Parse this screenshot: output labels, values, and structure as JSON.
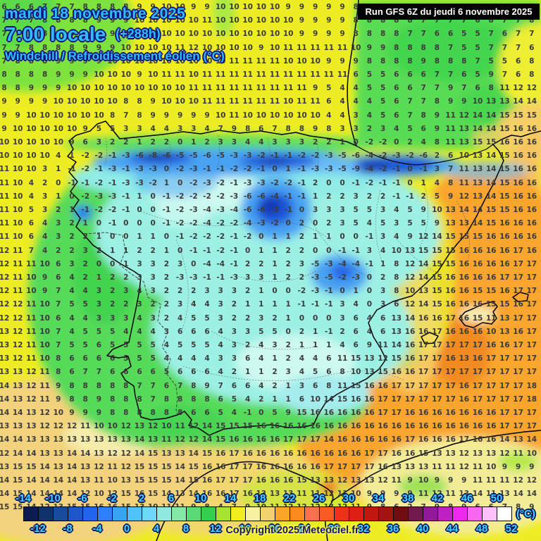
{
  "header": {
    "date_line": "mardi 18 novembre 2025",
    "time_line": "7:00 locale",
    "offset_label": "(+288h)",
    "param_line": "Windchill / Refroidissement éolien (°C)",
    "text_color": "#2fbdf8",
    "outline_color": "#12127e"
  },
  "run_box": {
    "label": "Run GFS 6Z du jeudi 6 novembre 2025",
    "bg_color": "#000000",
    "text_color": "#ffffff"
  },
  "copyright": {
    "label": "Copyright 2025 Meteociel.fr",
    "text_color": "#16166e",
    "glow_color": "#ffff55"
  },
  "scale": {
    "unit_label": "(°C)",
    "min": -14,
    "max": 52,
    "step": 2,
    "top_labels": [
      -14,
      -10,
      -6,
      -2,
      2,
      6,
      10,
      14,
      18,
      22,
      26,
      30,
      34,
      38,
      42,
      46,
      50
    ],
    "bottom_labels": [
      -12,
      -8,
      -4,
      0,
      4,
      8,
      12,
      16,
      20,
      24,
      28,
      32,
      36,
      40,
      44,
      48,
      52
    ],
    "label_color": "#3fd4ff",
    "colors": [
      "#0a1c50",
      "#12306e",
      "#194a9c",
      "#1e56c8",
      "#2465f0",
      "#2e80fc",
      "#3aa4f4",
      "#4fc2fa",
      "#6cd8fc",
      "#8feadd",
      "#86e8a6",
      "#58da75",
      "#33d04e",
      "#a8e42e",
      "#f2ee1e",
      "#f6f2a2",
      "#f2d26e",
      "#fba42c",
      "#fb8a1e",
      "#fa7150",
      "#f95b24",
      "#f0301c",
      "#de1f16",
      "#c0180f",
      "#a31310",
      "#6f0d10",
      "#701a4e",
      "#94189a",
      "#bf20c4",
      "#ee28ee",
      "#f768f3",
      "#fdc0fa",
      "#ffffff"
    ]
  },
  "grid": {
    "rows": [
      "6 6 6 7 7 7 8 8 8 8 9 9 10 10 9 9 10 10 10 10 10 9 9 9 9 9 8 8 8 9 8 8 8 7 7 7 8 8 8 8",
      "7 7 7 8 8 8 8 9 9 9 10 10 10 10 10 11 10 10 10 10 10 10 9 9 9 9 8 8 8 8 8 7 7 7 7 6 8 7 7 8",
      "7 7 8 8 8 8 8 9 9 9 10 10 10 10 10 10 10 10 10 10 10 10 9 9 9 9 8 8 8 8 7 7 6 6 5 5 7 6 7 7",
      "7 7 8 8 8 8 9 9 9 10 10 10 10 11 12 10 10 10 10 9 10 11 11 11 11 11 10 9 9 8 8 8 8 7 5 5 7 7 7 6",
      "7 8 8 8 9 9 9 9 10 10 10 10 10 10 10 10 10 11 11 11 11 10 10 10 9 9 9 8 8 8 8 9 8 8 8 7 5 5 6 8",
      "8 8 8 8 9 9 9 10 10 10 9 10 11 11 10 11 11 11 11 11 11 11 11 11 11 11 6 5 5 6 6 6 7 7 6 5 9 7 6 8",
      "8 8 9 9 9 10 10 10 10 10 10 10 10 10 11 11 11 11 11 11 11 11 11 9 5 4 4 5 5 6 6 7 7 9 7 6 8 11 12 12",
      "9 9 9 9 10 10 10 10 10 8 8 9 10 10 10 11 11 11 11 11 11 10 11 11 6 4 4 4 5 6 7 7 8 9 9 10 13 13 14 14",
      "9 9 10 10 10 10 10 10 8 7 8 9 9 9 9 9 10 11 10 10 10 10 10 10 4 4 3 4 5 6 7 8 9 11 12 14 14 15 15 15",
      "9 10 10 10 10 10 9 5 5 3 3 4 4 3 3 4 7 9 8 6 7 8 8 9 8 3 3 2 3 4 5 6 9 11 13 14 14 15 16 16",
      "10 10 10 10 10 9 6 3 2 2 1 2 2 0 1 2 3 3 4 4 3 3 3 2 2 1 0 -2 -2 0 2 4 8 11 13 15 15 16 16 16",
      "10 10 10 10 4 1 -2 -2 -1 -3 -6 -8 -6 -5 -5 -6 -5 -3 -3 -2 -1 -1 -2 -2 -3 -5 -6 -4 -2 -3 -2 -6 2 6 10 13 14 15 16 16",
      "11 10 10 3 1 -1 -2 -1 -3 -1 -3 -3 0 -2 -3 -1 -1 -2 -2 -1 0 1 -1 -3 -3 -5 -9 -4 -2 -1 0 -1 3 7 11 13 14 15 16 16",
      "11 10 4 2 0 -1 -1 -2 -1 -3 -3 -2 1 0 -2 -3 -2 -1 -3 -3 -2 -2 -1 2 0 0 -1 -2 -1 -1 0 1 4 8 11 13 14 15 16 16",
      "11 10 4 3 1 0 -2 -3 -3 -1 1 0 -1 -2 -2 -2 -2 -3 -6 -6 -4 -1 -1 1 2 2 3 2 2 -1 -1 2 5 9 12 13 14 15 16 16",
      "11 10 5 3 2 1 -1 -2 -2 -1 0 0 -1 -2 -3 -4 -3 -4 -6 -6 -3 -1 0 3 3 3 5 5 3 4 5 9 10 13 14 14 15 15 16 16",
      "11 10 6 4 3 2 1 0 -1 0 0 0 -1 -2 -2 -4 -2 -2 -4 -3 -2 0 2 0 2 3 5 4 5 3 5 5 9 13 13 14 15 16 16 16",
      "11 10 6 4 3 2 2 1 0 0 1 1 0 -1 -2 -2 -2 -1 -2 0 1 1 2 1 1 0 0 -1 3 4 9 12 14 15 15 15 16 16 16 16",
      "12 11 7 4 2 2 3 2 1 1 2 2 1 0 -1 -1 -2 -1 0 1 1 2 2 0 0 -1 -1 3 4 10 13 15 15 15 16 16 16 16 17 16",
      "12 11 11 10 6 3 2 0 0 1 3 3 2 3 0 -4 -4 -1 2 2 1 2 3 -5 -3 -4 -4 -1 1 8 12 14 15 15 16 16 16 16 17 17",
      "12 11 10 9 6 4 2 1 2 2 3 3 2 -3 -3 -1 -1 -3 3 3 1 2 2 -3 -5 -2 -3 0 2 8 12 14 15 16 16 16 16 17 17 17",
      "12 11 10 9 7 4 4 3 2 3 4 3 2 2 2 3 3 3 2 1 0 0 -2 -3 -1 0 1 0 3 8 10 13 15 16 16 15 15 16 17 17",
      "12 12 11 10 7 5 5 3 2 2 3 2 2 3 4 4 3 2 1 1 1 1 -1 -1 -1 3 4 0 3 6 12 14 15 16 16 16 15 15 16 17",
      "12 12 11 10 6 4 4 3 3 3 4 3 2 4 5 5 3 2 2 3 2 1 0 0 0 3 6 4 6 13 14 16 16 17 16 15 11 13 17 17",
      "13 12 11 10 7 4 5 5 5 4 4 4 3 6 6 6 4 3 3 5 5 0 2 1 -1 2 6 4 6 13 16 16 17 16 16 16 10 13 16 17",
      "13 12 11 10 7 5 5 6 5 5 5 5 4 5 5 5 4 3 2 4 3 2 1 1 1 4 6 9 11 14 16 17 17 17 17 17 16 16 17 17",
      "13 12 11 10 8 6 6 6 6 5 5 5 4 4 4 4 3 3 6 4 1 2 4 4 6 11 15 13 12 15 16 17 17 16 13 16 17 17 17 17",
      "13 13 12 11 8 6 7 7 6 6 6 6 5 6 6 6 4 2 1 1 2 3 4 5 6 8 10 13 15 16 16 17 17 17 17 17 17 17 17 17",
      "14 13 12 11 9 8 8 8 8 8 7 7 6 7 8 9 7 6 6 4 2 1 3 6 8 11 15 16 16 17 17 17 17 17 16 17 17 17 17 18",
      "14 13 12 11 9 8 8 9 8 8 8 7 8 8 8 8 6 5 4 2 1 1 6 10 14 15 16 16 17 17 17 17 17 17 16 17 17 17 17 18",
      "14 14 13 12 10 9 9 9 8 8 8 8 8 8 6 6 5 4 -1 0 5 9 15 16 16 16 16 16 17 17 16 16 16 16 16 16 16 17 17 17",
      "13 13 13 12 12 12 11 10 10 12 13 12 10 11 12 14 15 15 15 16 16 16 16 16 16 16 16 16 16 16 16 16 16 16 16 16 16 17 17 17",
      "14 14 13 13 13 13 13 13 13 13 14 13 11 12 12 14 15 16 16 16 16 17 17 17 14 16 16 16 16 16 17 16 16 16 17 16 16 14 13 14",
      "12 14 14 13 13 14 14 13 12 12 14 15 13 13 14 15 16 17 16 16 16 16 16 16 16 16 16 17 17 16 16 15 13 13 12 13 13 12 11 10",
      "13 15 15 14 13 14 13 12 11 12 15 15 15 14 15 16 16 17 17 16 16 16 16 16 17 17 17 17 16 13 13 13 11 11 12 11 10 9 9 9",
      "14 15 14 14 14 14 13 11 10 13 15 15 15 14 15 16 17 17 17 16 16 16 15 13 13 12 13 13 12 11 9 10 9 9 9 11 11 11 12 12",
      "14 15 14 14 14 14 12 10 12 15 16 15 14 13 14 16 16 17 16 13 13 13 11 11 12 11 10 9 9 9 9 11 12 11 13 14 11 13 14 14",
      "15 15 14 12 13 15 15 16 16 15 13 10 11 11 9 8 4 7 9 10 11 12 12 12 13 12 11 9 8 6 2 7 9 8 9 6 6 7 8 9"
    ]
  }
}
